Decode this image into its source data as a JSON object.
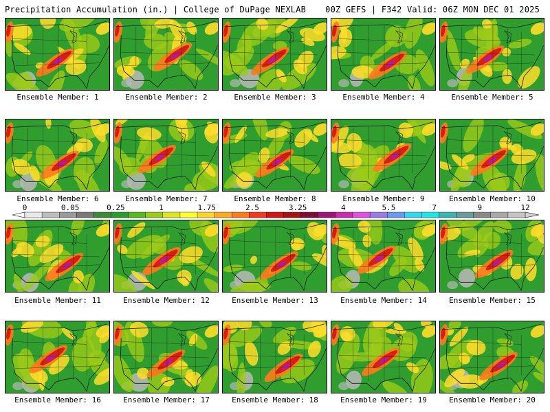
{
  "header": {
    "left": "Precipitation Accumulation (in.) | College of DuPage NEXLAB",
    "right": "00Z GEFS | F342 Valid: 06Z MON DEC 01 2025"
  },
  "caption_prefix": "Ensemble Member: ",
  "members": [
    "1",
    "2",
    "3",
    "4",
    "5",
    "6",
    "7",
    "8",
    "9",
    "10",
    "11",
    "12",
    "13",
    "14",
    "15",
    "16",
    "17",
    "18",
    "19",
    "20"
  ],
  "colorbar": {
    "labels": [
      "0",
      "0.05",
      "0.25",
      "1",
      "1.75",
      "2.5",
      "3.25",
      "4",
      "5.5",
      "7",
      "9",
      "12"
    ],
    "colors": [
      "#e8e8e8",
      "#bdbdbd",
      "#9a9a9a",
      "#7a7a7a",
      "#3a8a3a",
      "#2a9e2a",
      "#58b81c",
      "#9ccb18",
      "#dce81c",
      "#ffff28",
      "#ffd42a",
      "#ffa824",
      "#ff7a1c",
      "#f23a1a",
      "#d41414",
      "#a81212",
      "#820c38",
      "#a0127a",
      "#cc2ab0",
      "#e050e0",
      "#9a7ae6",
      "#6a9aee",
      "#34d8ee",
      "#1ee6e6",
      "#3ab4b4",
      "#6a9a9a",
      "#8a8a8a",
      "#a8a8a8",
      "#c4c4c4"
    ]
  },
  "map_colors": {
    "dry": "#b8b8b8",
    "low": "#2f9e2f",
    "mid": "#9ccb18",
    "high": "#ffdd2a",
    "heavy": "#ff7a1c",
    "extreme": "#d41414",
    "peak": "#b41aa0",
    "lines": "#202020"
  }
}
